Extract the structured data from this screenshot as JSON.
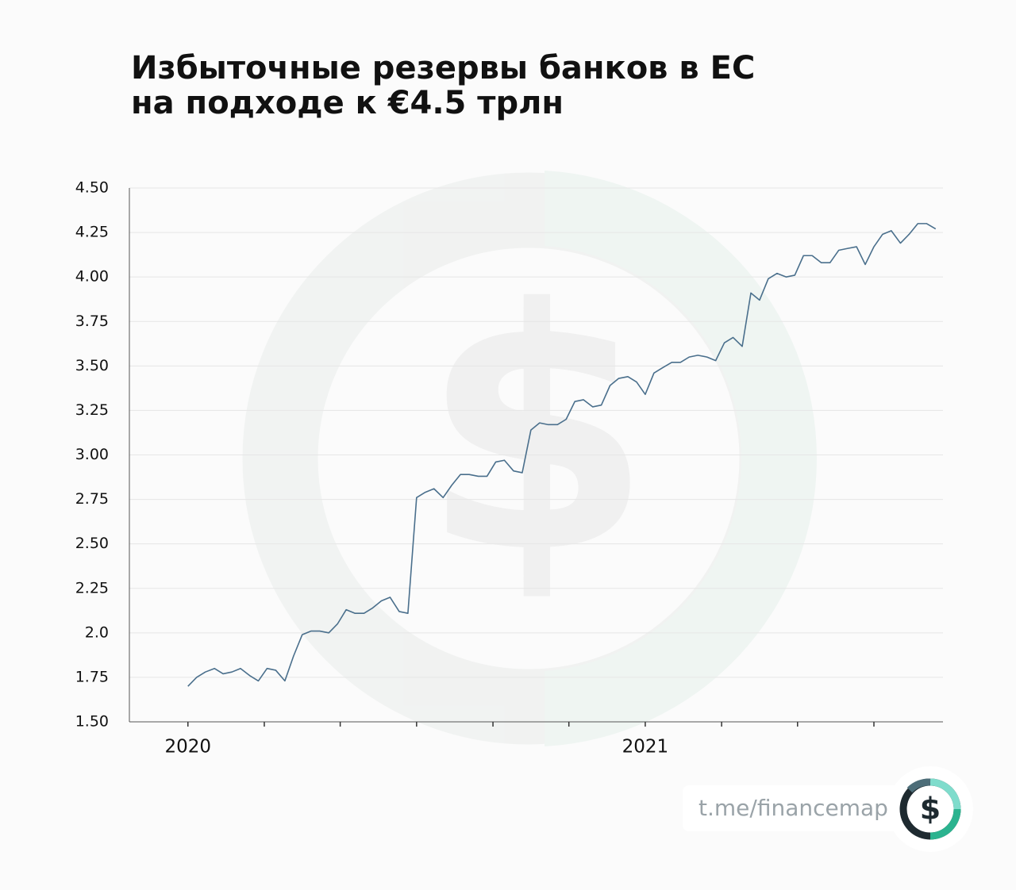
{
  "chart_data": {
    "type": "line",
    "title": [
      "Избыточные резервы банков в ЕС",
      "на подходе к €4.5 трлн"
    ],
    "x": [
      2020,
      2020.019,
      2020.038,
      2020.058,
      2020.077,
      2020.096,
      2020.115,
      2020.135,
      2020.154,
      2020.173,
      2020.192,
      2020.212,
      2020.231,
      2020.25,
      2020.269,
      2020.288,
      2020.308,
      2020.327,
      2020.346,
      2020.365,
      2020.385,
      2020.404,
      2020.423,
      2020.442,
      2020.462,
      2020.481,
      2020.5,
      2020.519,
      2020.538,
      2020.558,
      2020.577,
      2020.596,
      2020.615,
      2020.635,
      2020.654,
      2020.673,
      2020.692,
      2020.712,
      2020.731,
      2020.75,
      2020.769,
      2020.788,
      2020.808,
      2020.827,
      2020.846,
      2020.865,
      2020.885,
      2020.904,
      2020.923,
      2020.942,
      2020.962,
      2020.981,
      2021,
      2021.019,
      2021.038,
      2021.058,
      2021.077,
      2021.096,
      2021.115,
      2021.135,
      2021.154,
      2021.173,
      2021.192,
      2021.212,
      2021.231,
      2021.25,
      2021.269,
      2021.288,
      2021.308,
      2021.327,
      2021.346,
      2021.365,
      2021.385,
      2021.404,
      2021.423,
      2021.442,
      2021.462,
      2021.481,
      2021.5,
      2021.519,
      2021.538,
      2021.558,
      2021.577,
      2021.596,
      2021.615,
      2021.635
    ],
    "series": [
      {
        "color": "#4a6f8c",
        "values": [
          1.7,
          1.75,
          1.78,
          1.8,
          1.77,
          1.78,
          1.8,
          1.76,
          1.73,
          1.8,
          1.79,
          1.73,
          1.87,
          1.99,
          2.01,
          2.01,
          2.0,
          2.05,
          2.13,
          2.11,
          2.11,
          2.14,
          2.18,
          2.2,
          2.12,
          2.11,
          2.76,
          2.79,
          2.81,
          2.76,
          2.83,
          2.89,
          2.89,
          2.88,
          2.88,
          2.96,
          2.97,
          2.91,
          2.9,
          3.14,
          3.18,
          3.17,
          3.17,
          3.2,
          3.3,
          3.31,
          3.27,
          3.28,
          3.39,
          3.43,
          3.44,
          3.41,
          3.34,
          3.46,
          3.49,
          3.52,
          3.52,
          3.55,
          3.56,
          3.55,
          3.53,
          3.63,
          3.66,
          3.61,
          3.91,
          3.87,
          3.99,
          4.02,
          4.0,
          4.01,
          4.12,
          4.12,
          4.08,
          4.08,
          4.15,
          4.16,
          4.17,
          4.07,
          4.17,
          4.24,
          4.26,
          4.19,
          4.24,
          4.3,
          4.3,
          4.27
        ]
      }
    ],
    "xlim": [
      2019.872,
      2021.651
    ],
    "xticks": [
      2020,
      2021
    ],
    "xminor_ticks": [
      2020.167,
      2020.333,
      2020.5,
      2020.667,
      2020.833,
      2021.167,
      2021.333,
      2021.5
    ],
    "ylim": [
      1.5,
      4.5
    ],
    "yticks": [
      {
        "value": 1.5,
        "label": "1.50"
      },
      1.75,
      {
        "value": 2,
        "label": "2.0"
      },
      2.25,
      {
        "value": 2.5,
        "label": "2.50"
      },
      2.75,
      {
        "value": 3,
        "label": "3.00"
      },
      3.25,
      {
        "value": 3.5,
        "label": "3.50"
      },
      3.75,
      {
        "value": 4,
        "label": "4.00"
      },
      4.25,
      {
        "value": 4.5,
        "label": "4.50"
      }
    ],
    "grid": true
  },
  "footer": {
    "link": "t.me/financemap"
  }
}
